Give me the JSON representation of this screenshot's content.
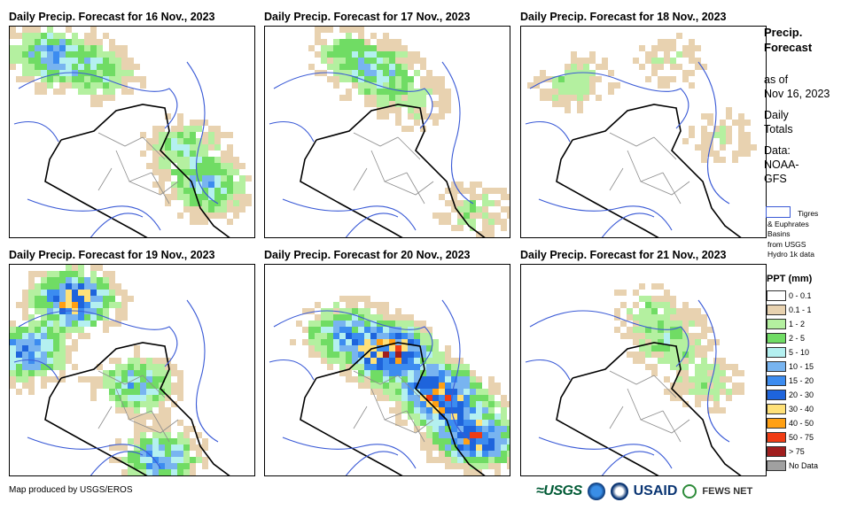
{
  "panels": [
    {
      "title": "Daily Precip. Forecast for 16 Nov., 2023",
      "intensity": 0.35
    },
    {
      "title": "Daily Precip. Forecast for 17 Nov., 2023",
      "intensity": 0.25
    },
    {
      "title": "Daily Precip. Forecast for 18 Nov., 2023",
      "intensity": 0.2
    },
    {
      "title": "Daily Precip. Forecast for 19 Nov., 2023",
      "intensity": 0.7
    },
    {
      "title": "Daily Precip. Forecast for 20 Nov., 2023",
      "intensity": 0.85
    },
    {
      "title": "Daily Precip. Forecast for 21 Nov., 2023",
      "intensity": 0.25
    }
  ],
  "side": {
    "title_line1": "Precip.",
    "title_line2": "Forecast",
    "asof_line1": "as of",
    "asof_line2": "Nov 16, 2023",
    "daily_line1": "Daily",
    "daily_line2": "Totals",
    "data_line1": "Data:",
    "data_line2": "NOAA-",
    "data_line3": "GFS"
  },
  "basin_legend": {
    "line1": "Tigres",
    "line2": "& Euphrates",
    "line3": "Basins",
    "line4": "from USGS",
    "line5": "Hydro 1k data",
    "color": "#3a5ad6"
  },
  "ppt_legend": {
    "title": "PPT (mm)",
    "items": [
      {
        "label": "0 - 0.1",
        "color": "#ffffff"
      },
      {
        "label": "0.1 - 1",
        "color": "#e8d2b0"
      },
      {
        "label": "1 - 2",
        "color": "#b4f0a0"
      },
      {
        "label": "2 - 5",
        "color": "#70dc64"
      },
      {
        "label": "5 - 10",
        "color": "#b4f0f0"
      },
      {
        "label": "10 - 15",
        "color": "#78b4f0"
      },
      {
        "label": "15 - 20",
        "color": "#3c8cf0"
      },
      {
        "label": "20 - 30",
        "color": "#1e64dc"
      },
      {
        "label": "30 - 40",
        "color": "#ffe178"
      },
      {
        "label": "40 - 50",
        "color": "#ffa014"
      },
      {
        "label": "50 - 75",
        "color": "#f03c14"
      },
      {
        "label": "> 75",
        "color": "#a01e1e"
      },
      {
        "label": "No Data",
        "color": "#a0a0a0"
      }
    ]
  },
  "footer": {
    "credit": "Map produced by USGS/EROS"
  },
  "logos": {
    "usgs": "≈USGS",
    "usaid": "USAID",
    "fews": "FEWS NET"
  }
}
